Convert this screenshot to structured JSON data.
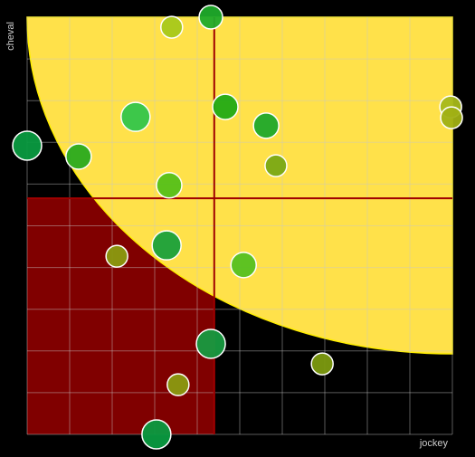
{
  "chart_data": {
    "type": "scatter",
    "x_label": "jockey",
    "y_label": "cheval",
    "xlim": [
      0,
      100
    ],
    "ylim": [
      0,
      100
    ],
    "xticks": [
      0,
      10,
      20,
      30,
      40,
      50,
      60,
      70,
      80,
      90,
      100
    ],
    "yticks": [
      0,
      10,
      20,
      30,
      40,
      50,
      60,
      70,
      80,
      90,
      100
    ],
    "grid": true,
    "x_threshold": 44,
    "y_threshold": 56.6,
    "quadrant_colors": {
      "top_right": "#006400",
      "bottom_left": "#800000"
    },
    "points": [
      {
        "x": 34.0,
        "y": 97.6,
        "size": 12,
        "color": "#a8c81a"
      },
      {
        "x": 43.2,
        "y": 100,
        "size": 13,
        "color": "#1faa2a"
      },
      {
        "x": 0,
        "y": 69.2,
        "size": 16,
        "color": "#0a9a40"
      },
      {
        "x": 12.1,
        "y": 66.6,
        "size": 14,
        "color": "#2aaa1e"
      },
      {
        "x": 25.5,
        "y": 76.1,
        "size": 16,
        "color": "#33c54a"
      },
      {
        "x": 46.6,
        "y": 78.5,
        "size": 14,
        "color": "#22aa14"
      },
      {
        "x": 56.2,
        "y": 74.0,
        "size": 14,
        "color": "#1fa82a"
      },
      {
        "x": 58.5,
        "y": 64.4,
        "size": 12,
        "color": "#7aa814"
      },
      {
        "x": 99.6,
        "y": 78.5,
        "size": 12,
        "color": "#a6b81a"
      },
      {
        "x": 99.8,
        "y": 75.9,
        "size": 12,
        "color": "#a0b014"
      },
      {
        "x": 33.4,
        "y": 59.7,
        "size": 14,
        "color": "#55c018"
      },
      {
        "x": 32.8,
        "y": 45.3,
        "size": 16,
        "color": "#1aa03a"
      },
      {
        "x": 21.1,
        "y": 42.7,
        "size": 12,
        "color": "#8a9a10"
      },
      {
        "x": 50.9,
        "y": 40.6,
        "size": 14,
        "color": "#55c020"
      },
      {
        "x": 43.2,
        "y": 21.7,
        "size": 16,
        "color": "#179a40"
      },
      {
        "x": 69.4,
        "y": 16.9,
        "size": 12,
        "color": "#7c9a10"
      },
      {
        "x": 35.5,
        "y": 11.9,
        "size": 12,
        "color": "#8a9a10"
      },
      {
        "x": 30.4,
        "y": 0,
        "size": 16,
        "color": "#0a9a40"
      }
    ]
  }
}
